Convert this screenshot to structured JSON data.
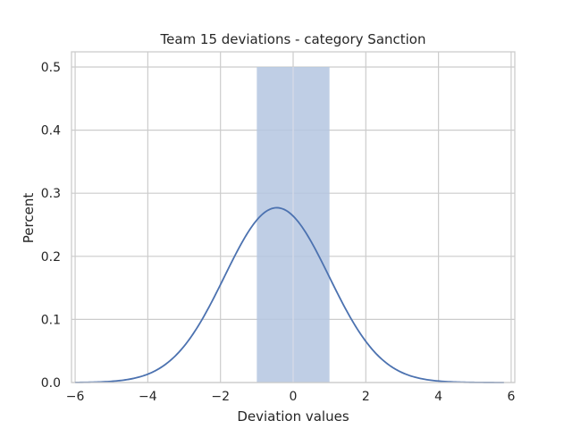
{
  "chart_data": {
    "type": "bar",
    "title": "Team 15 deviations -  category Sanction",
    "xlabel": "Deviation values",
    "ylabel": "Percent",
    "xlim": [
      -6.1,
      6.1
    ],
    "ylim": [
      0,
      0.5
    ],
    "xticks": [
      -6,
      -4,
      -2,
      0,
      2,
      4,
      6
    ],
    "xtick_labels": [
      "−6",
      "−4",
      "−2",
      "0",
      "2",
      "4",
      "6"
    ],
    "yticks": [
      0.0,
      0.1,
      0.2,
      0.3,
      0.4,
      0.5
    ],
    "ytick_labels": [
      "0.0",
      "0.1",
      "0.2",
      "0.3",
      "0.4",
      "0.5"
    ],
    "grid": true,
    "histogram": {
      "bins": [
        {
          "x0": -1.0,
          "x1": 1.0,
          "value": 0.5
        }
      ],
      "color": "#b4c5e0"
    },
    "kde": {
      "color": "#4c72b0",
      "mean": -0.45,
      "std": 1.44,
      "peak": 0.277,
      "x_range": [
        -6.0,
        5.8
      ]
    }
  }
}
